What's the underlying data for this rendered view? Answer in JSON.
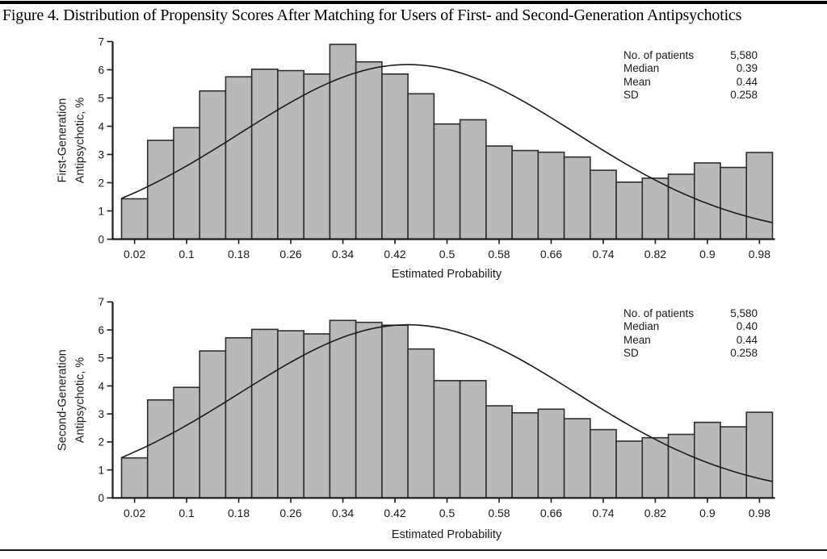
{
  "title": "Figure 4. Distribution of Propensity Scores After Matching for Users of First- and Second-Generation Antipsychotics",
  "colors": {
    "bar_fill": "#b9b9b9",
    "bar_stroke": "#2e2e2e",
    "curve": "#1a1a1a",
    "axis": "#1a1a1a",
    "text": "#1a1a1a"
  },
  "chart_data": [
    {
      "type": "bar",
      "subtype": "histogram-with-normal-curve",
      "ylabel_lines": [
        "First-Generation",
        "Antipsychotic, %"
      ],
      "xlabel": "Estimated Probability",
      "ylim": [
        0,
        7
      ],
      "xlim": [
        0,
        1
      ],
      "y_ticks": [
        0,
        1,
        2,
        3,
        4,
        5,
        6,
        7
      ],
      "x_tick_values": [
        0.02,
        0.1,
        0.18,
        0.26,
        0.34,
        0.42,
        0.5,
        0.58,
        0.66,
        0.74,
        0.82,
        0.9,
        0.98
      ],
      "x_tick_labels": [
        "0.02",
        "0.1",
        "0.18",
        "0.26",
        "0.34",
        "0.42",
        "0.5",
        "0.58",
        "0.66",
        "0.74",
        "0.82",
        "0.9",
        "0.98"
      ],
      "bin_width": 0.04,
      "bin_centers": [
        0.02,
        0.06,
        0.1,
        0.14,
        0.18,
        0.22,
        0.26,
        0.3,
        0.34,
        0.38,
        0.42,
        0.46,
        0.5,
        0.54,
        0.58,
        0.62,
        0.66,
        0.7,
        0.74,
        0.78,
        0.82,
        0.86,
        0.9,
        0.94,
        0.98
      ],
      "values_pct": [
        1.43,
        3.5,
        3.95,
        5.25,
        5.75,
        6.02,
        5.97,
        5.85,
        6.9,
        6.28,
        5.85,
        5.15,
        4.08,
        4.23,
        3.3,
        3.14,
        3.08,
        2.91,
        2.44,
        2.02,
        2.16,
        2.3,
        2.7,
        2.54,
        3.07
      ],
      "normal_curve": {
        "mean": 0.44,
        "sd": 0.258,
        "scale_pct_per_bin": 4
      },
      "stats": {
        "rows": [
          {
            "label": "No. of patients",
            "value": "5,580"
          },
          {
            "label": "Median",
            "value": "0.39"
          },
          {
            "label": "Mean",
            "value": "0.44"
          },
          {
            "label": "SD",
            "value": "0.258"
          }
        ]
      }
    },
    {
      "type": "bar",
      "subtype": "histogram-with-normal-curve",
      "ylabel_lines": [
        "Second-Generation",
        "Antipsychotic, %"
      ],
      "xlabel": "Estimated Probability",
      "ylim": [
        0,
        7
      ],
      "xlim": [
        0,
        1
      ],
      "y_ticks": [
        0,
        1,
        2,
        3,
        4,
        5,
        6,
        7
      ],
      "x_tick_values": [
        0.02,
        0.1,
        0.18,
        0.26,
        0.34,
        0.42,
        0.5,
        0.58,
        0.66,
        0.74,
        0.82,
        0.9,
        0.98
      ],
      "x_tick_labels": [
        "0.02",
        "0.1",
        "0.18",
        "0.26",
        "0.34",
        "0.42",
        "0.5",
        "0.58",
        "0.66",
        "0.74",
        "0.82",
        "0.9",
        "0.98"
      ],
      "bin_width": 0.04,
      "bin_centers": [
        0.02,
        0.06,
        0.1,
        0.14,
        0.18,
        0.22,
        0.26,
        0.3,
        0.34,
        0.38,
        0.42,
        0.46,
        0.5,
        0.54,
        0.58,
        0.62,
        0.66,
        0.7,
        0.74,
        0.78,
        0.82,
        0.86,
        0.9,
        0.94,
        0.98
      ],
      "values_pct": [
        1.43,
        3.5,
        3.95,
        5.25,
        5.72,
        6.02,
        5.97,
        5.86,
        6.34,
        6.27,
        6.17,
        5.32,
        4.19,
        4.19,
        3.29,
        3.04,
        3.17,
        2.83,
        2.44,
        2.03,
        2.15,
        2.27,
        2.7,
        2.54,
        3.06
      ],
      "normal_curve": {
        "mean": 0.44,
        "sd": 0.258,
        "scale_pct_per_bin": 4
      },
      "stats": {
        "rows": [
          {
            "label": "No. of patients",
            "value": "5,580"
          },
          {
            "label": "Median",
            "value": "0.40"
          },
          {
            "label": "Mean",
            "value": "0.44"
          },
          {
            "label": "SD",
            "value": "0.258"
          }
        ]
      }
    }
  ]
}
